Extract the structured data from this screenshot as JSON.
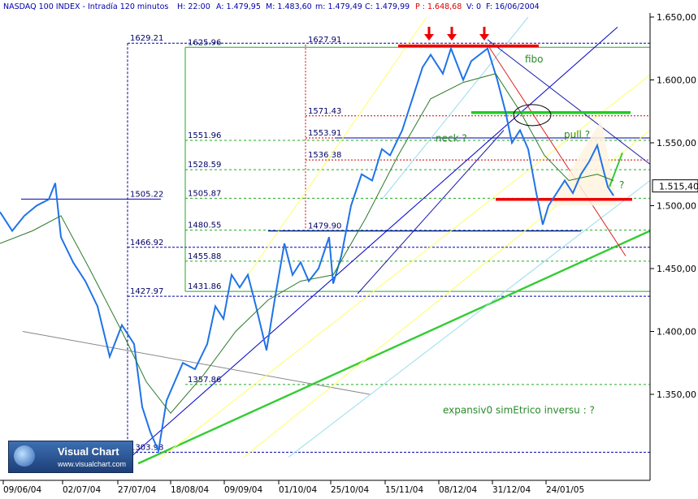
{
  "header": {
    "title": "NASDAQ 100 INDEX - Intradía 120 minutos",
    "h": "H: 22:00",
    "a": "A: 1.479,95",
    "m": "M: 1.483,60",
    "min": "m: 1.479,49",
    "c": "C: 1.479,99",
    "p": "P : 1.648,68",
    "v": "V: 0",
    "f": "F: 16/06/2004"
  },
  "logo": {
    "brand": "Visual Chart",
    "url": "www.visualchart.com"
  },
  "price_badge": "1.515,40",
  "chart_data": {
    "type": "line",
    "title": "NASDAQ 100 INDEX - Intradía 120 minutos",
    "ylim": [
      1300,
      1652
    ],
    "y_ticks": [
      1350,
      1400,
      1450,
      1500,
      1550,
      1600,
      1650
    ],
    "y_tick_labels": [
      "1.350,00",
      "1.400,00",
      "1.450,00",
      "1.500,00",
      "1.550,00",
      "1.600,00",
      "1.650,00"
    ],
    "x_tick_labels": [
      "09/06/04",
      "02/07/04",
      "27/07/04",
      "18/08/04",
      "09/09/04",
      "01/10/04",
      "25/10/04",
      "15/11/04",
      "08/12/04",
      "31/12/04",
      "24/01/05"
    ],
    "price_series": [
      [
        0,
        1495
      ],
      [
        15,
        1480
      ],
      [
        30,
        1492
      ],
      [
        45,
        1500
      ],
      [
        60,
        1505
      ],
      [
        68,
        1518
      ],
      [
        75,
        1475
      ],
      [
        90,
        1455
      ],
      [
        105,
        1440
      ],
      [
        120,
        1420
      ],
      [
        135,
        1380
      ],
      [
        150,
        1405
      ],
      [
        165,
        1390
      ],
      [
        175,
        1340
      ],
      [
        185,
        1320
      ],
      [
        195,
        1305
      ],
      [
        205,
        1345
      ],
      [
        215,
        1360
      ],
      [
        225,
        1375
      ],
      [
        240,
        1370
      ],
      [
        255,
        1390
      ],
      [
        265,
        1420
      ],
      [
        275,
        1410
      ],
      [
        285,
        1445
      ],
      [
        295,
        1435
      ],
      [
        305,
        1445
      ],
      [
        315,
        1420
      ],
      [
        328,
        1385
      ],
      [
        338,
        1425
      ],
      [
        350,
        1470
      ],
      [
        360,
        1445
      ],
      [
        370,
        1455
      ],
      [
        380,
        1440
      ],
      [
        392,
        1450
      ],
      [
        405,
        1475
      ],
      [
        410,
        1438
      ],
      [
        420,
        1460
      ],
      [
        432,
        1500
      ],
      [
        445,
        1525
      ],
      [
        458,
        1520
      ],
      [
        470,
        1545
      ],
      [
        480,
        1540
      ],
      [
        495,
        1560
      ],
      [
        505,
        1580
      ],
      [
        520,
        1610
      ],
      [
        530,
        1620
      ],
      [
        545,
        1605
      ],
      [
        555,
        1625
      ],
      [
        570,
        1600
      ],
      [
        580,
        1615
      ],
      [
        590,
        1620
      ],
      [
        600,
        1625
      ],
      [
        612,
        1600
      ],
      [
        622,
        1575
      ],
      [
        630,
        1550
      ],
      [
        640,
        1560
      ],
      [
        650,
        1545
      ],
      [
        660,
        1510
      ],
      [
        668,
        1485
      ],
      [
        675,
        1500
      ],
      [
        685,
        1510
      ],
      [
        695,
        1520
      ],
      [
        705,
        1510
      ],
      [
        715,
        1525
      ],
      [
        725,
        1535
      ],
      [
        735,
        1548
      ],
      [
        740,
        1535
      ],
      [
        748,
        1515
      ],
      [
        755,
        1508
      ]
    ],
    "ma_series": [
      [
        0,
        1470
      ],
      [
        40,
        1480
      ],
      [
        75,
        1492
      ],
      [
        110,
        1450
      ],
      [
        150,
        1400
      ],
      [
        180,
        1360
      ],
      [
        210,
        1335
      ],
      [
        250,
        1365
      ],
      [
        290,
        1400
      ],
      [
        330,
        1425
      ],
      [
        370,
        1440
      ],
      [
        410,
        1445
      ],
      [
        450,
        1490
      ],
      [
        490,
        1540
      ],
      [
        530,
        1585
      ],
      [
        570,
        1598
      ],
      [
        610,
        1605
      ],
      [
        640,
        1575
      ],
      [
        670,
        1540
      ],
      [
        700,
        1520
      ],
      [
        735,
        1525
      ],
      [
        755,
        1520
      ]
    ],
    "price_lines": [
      {
        "label": "1629.21",
        "value": 1629.21
      },
      {
        "label": "1625.96",
        "value": 1625.96
      },
      {
        "label": "1627.91",
        "value": 1627.91
      },
      {
        "label": "1571.43",
        "value": 1571.43
      },
      {
        "label": "1553.91",
        "value": 1553.91
      },
      {
        "label": "1551.96",
        "value": 1551.96
      },
      {
        "label": "1536.38",
        "value": 1536.38
      },
      {
        "label": "1528.59",
        "value": 1528.59
      },
      {
        "label": "1505.22",
        "value": 1505.22
      },
      {
        "label": "1505.87",
        "value": 1505.87
      },
      {
        "label": "1480.55",
        "value": 1480.55
      },
      {
        "label": "1479.90",
        "value": 1479.9
      },
      {
        "label": "1466.92",
        "value": 1466.92
      },
      {
        "label": "1455.88",
        "value": 1455.88
      },
      {
        "label": "1431.86",
        "value": 1431.86
      },
      {
        "label": "1427.97",
        "value": 1427.97
      },
      {
        "label": "1357.86",
        "value": 1357.86
      },
      {
        "label": "1303.98",
        "value": 1303.98
      }
    ],
    "annotations": [
      {
        "text": "fibo"
      },
      {
        "text": "neck ?"
      },
      {
        "text": "pull ?"
      },
      {
        "text": "?"
      },
      {
        "text": "expansiv0 simEtrico inversu : ?"
      }
    ],
    "colors": {
      "price": "#1e73e8",
      "ma": "#2a7a2a",
      "support": "#ee0000",
      "resistance": "#22cc22",
      "axis": "#000000"
    }
  }
}
